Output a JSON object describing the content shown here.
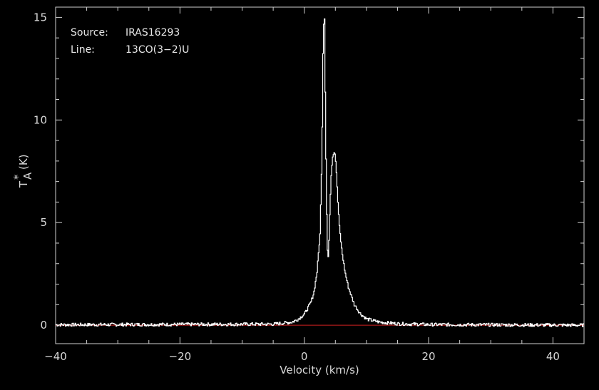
{
  "chart_data": {
    "type": "line",
    "title": "",
    "xlabel": "Velocity (km/s)",
    "ylabel_main": "T",
    "ylabel_sup": "*",
    "ylabel_sub": "A",
    "ylabel_unit": "(K)",
    "xlim": [
      -40,
      45
    ],
    "ylim": [
      -0.9,
      15.5
    ],
    "xticks": [
      -40,
      -20,
      0,
      20,
      40
    ],
    "xtick_labels": [
      "−40",
      "−20",
      "0",
      "20",
      "40"
    ],
    "yticks": [
      0,
      5,
      10,
      15
    ],
    "ytick_labels": [
      "0",
      "5",
      "10",
      "15"
    ],
    "baseline": 0,
    "colors": {
      "spectrum": "#ffffff",
      "baseline": "#d02020",
      "axes": "#d0d0d0",
      "background": "#000000"
    },
    "info": {
      "source_key": "Source:",
      "source_value": "IRAS16293",
      "line_key": "Line:",
      "line_value": "13CO(3−2)U"
    },
    "series": [
      {
        "x": [
          -40,
          -5,
          -2,
          -1,
          0,
          1,
          1.5,
          2,
          2.5,
          2.8,
          3.0,
          3.2,
          3.4,
          3.6,
          3.75,
          3.9,
          4.1,
          4.3,
          4.5,
          4.7,
          4.9,
          5.1,
          5.3,
          5.6,
          6,
          6.5,
          7,
          8,
          9,
          10,
          12,
          15,
          20,
          45
        ],
        "values": [
          0.02,
          0.05,
          0.15,
          0.3,
          0.55,
          1.1,
          1.6,
          2.6,
          4.5,
          8.5,
          14.5,
          15.0,
          9.0,
          4.5,
          2.9,
          4.0,
          6.0,
          7.5,
          8.2,
          8.45,
          8.4,
          7.6,
          6.3,
          4.8,
          3.6,
          2.6,
          1.9,
          1.0,
          0.55,
          0.3,
          0.15,
          0.07,
          0.03,
          0.0
        ]
      }
    ]
  }
}
